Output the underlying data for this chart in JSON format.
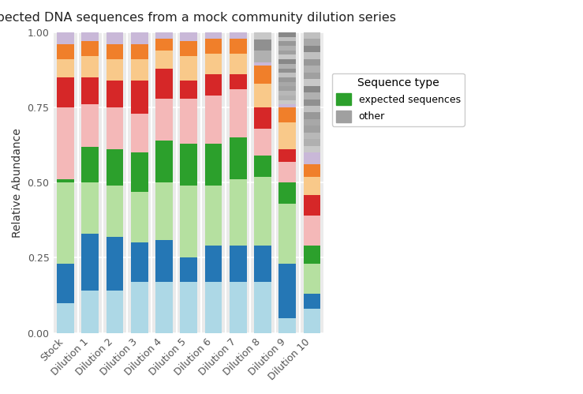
{
  "title": "Expected DNA sequences from a mock community dilution series",
  "ylabel": "Relative Abundance",
  "categories": [
    "Stock",
    "Dilution 1",
    "Dilution 2",
    "Dilution 3",
    "Dilution 4",
    "Dilution 5",
    "Dilution 6",
    "Dilution 7",
    "Dilution 8",
    "Dilution 9",
    "Dilution 10"
  ],
  "segment_colors": [
    "#add8e6",
    "#2577b5",
    "#b5e0a0",
    "#2ca02c",
    "#f4b8b8",
    "#d62728",
    "#f9c98a",
    "#f07f2a",
    "#c9b8d8"
  ],
  "segment_values": [
    [
      0.1,
      0.14,
      0.14,
      0.17,
      0.17,
      0.17,
      0.17,
      0.17,
      0.17,
      0.05,
      0.08
    ],
    [
      0.13,
      0.19,
      0.18,
      0.13,
      0.14,
      0.08,
      0.12,
      0.12,
      0.12,
      0.18,
      0.05
    ],
    [
      0.27,
      0.17,
      0.17,
      0.17,
      0.19,
      0.24,
      0.2,
      0.22,
      0.23,
      0.2,
      0.1
    ],
    [
      0.01,
      0.12,
      0.12,
      0.13,
      0.14,
      0.14,
      0.14,
      0.14,
      0.07,
      0.07,
      0.06
    ],
    [
      0.24,
      0.14,
      0.14,
      0.13,
      0.14,
      0.15,
      0.16,
      0.16,
      0.09,
      0.07,
      0.1
    ],
    [
      0.1,
      0.09,
      0.09,
      0.11,
      0.1,
      0.06,
      0.07,
      0.05,
      0.07,
      0.04,
      0.07
    ],
    [
      0.06,
      0.07,
      0.07,
      0.07,
      0.06,
      0.08,
      0.07,
      0.07,
      0.08,
      0.09,
      0.06
    ],
    [
      0.05,
      0.05,
      0.05,
      0.05,
      0.04,
      0.05,
      0.05,
      0.05,
      0.06,
      0.05,
      0.04
    ],
    [
      0.04,
      0.03,
      0.04,
      0.04,
      0.02,
      0.03,
      0.02,
      0.02,
      0.01,
      0.01,
      0.04
    ]
  ],
  "gray_stripe_colors_d9": [
    "#c8c8c8",
    "#b0b0b0",
    "#b8b8b8",
    "#a0a0a0",
    "#a8a8a8",
    "#989898",
    "#c0c0c0",
    "#909090",
    "#b0b0b0",
    "#888888",
    "#c8c8c8",
    "#a0a0a0",
    "#b0b0b0",
    "#989898",
    "#c0c0c0",
    "#888888"
  ],
  "gray_stripe_colors_d10": [
    "#c8c8c8",
    "#b0b0b0",
    "#b8b8b8",
    "#a0a0a0",
    "#a8a8a8",
    "#989898",
    "#c0c0c0",
    "#909090",
    "#b0b0b0",
    "#888888",
    "#c8c8c8",
    "#a0a0a0",
    "#b0b0b0",
    "#989898",
    "#c0c0c0",
    "#888888",
    "#a8a8a8",
    "#c0c0c0"
  ],
  "n_stripes_d9": 16,
  "n_stripes_d10": 18,
  "legend_labels": [
    "expected sequences",
    "other"
  ],
  "legend_colors": [
    "#2ca02c",
    "#a0a0a0"
  ],
  "bg_color": "#ebebeb",
  "panel_bg": "#ebebeb",
  "ylim": [
    0,
    1.0
  ],
  "yticks": [
    0.0,
    0.25,
    0.5,
    0.75,
    1.0
  ],
  "bar_width": 0.7,
  "figsize": [
    7.39,
    4.99
  ],
  "dpi": 100
}
